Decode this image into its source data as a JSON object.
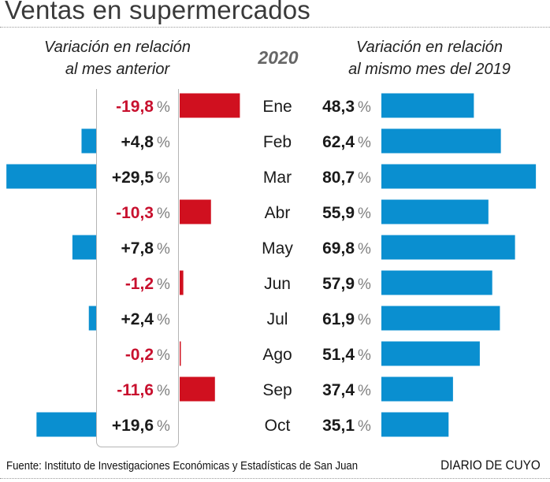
{
  "header": {
    "title": "Ventas en supermercados",
    "left_heading_line1": "Variación en relación",
    "left_heading_line2": "al mes anterior",
    "year_label": "2020",
    "right_heading_line1": "Variación en relación",
    "right_heading_line2": "al mismo mes del 2019"
  },
  "footer": {
    "source": "Fuente: Instituto de Investigaciones Económicas y Estadísticas de San Juan",
    "brand": "DIARIO DE CUYO"
  },
  "colors": {
    "positive": "#0a8fd0",
    "negative": "#d0101f",
    "negative_text": "#c8102e",
    "positive_text": "#1a1a1a",
    "percent_sign": "#808080"
  },
  "chart_data": [
    {
      "type": "bar",
      "orientation": "horizontal-diverging",
      "title": "Variación en relación al mes anterior",
      "categories": [
        "Ene",
        "Feb",
        "Mar",
        "Abr",
        "May",
        "Jun",
        "Jul",
        "Ago",
        "Sep",
        "Oct"
      ],
      "values": [
        -19.8,
        4.8,
        29.5,
        -10.3,
        7.8,
        -1.2,
        2.4,
        -0.2,
        -11.6,
        19.6
      ],
      "labels": [
        "-19,8",
        "+4,8",
        "+29,5",
        "-10,3",
        "+7,8",
        "-1,2",
        "+2,4",
        "-0,2",
        "-11,6",
        "+19,6"
      ],
      "unit": "%",
      "note": "positive bars extend left (blue), negative bars extend right (red)",
      "grid": false
    },
    {
      "type": "bar",
      "orientation": "horizontal",
      "title": "Variación en relación al mismo mes del 2019",
      "categories": [
        "Ene",
        "Feb",
        "Mar",
        "Abr",
        "May",
        "Jun",
        "Jul",
        "Ago",
        "Sep",
        "Oct"
      ],
      "values": [
        48.3,
        62.4,
        80.7,
        55.9,
        69.8,
        57.9,
        61.9,
        51.4,
        37.4,
        35.1
      ],
      "labels": [
        "48,3",
        "62,4",
        "80,7",
        "55,9",
        "69,8",
        "57,9",
        "61,9",
        "51,4",
        "37,4",
        "35,1"
      ],
      "unit": "%",
      "grid": false
    }
  ],
  "percent_sign": "%"
}
